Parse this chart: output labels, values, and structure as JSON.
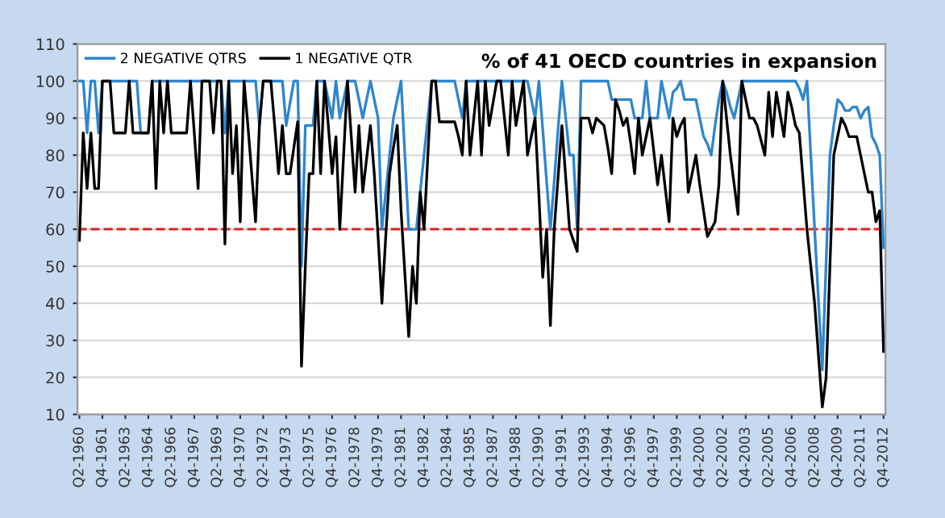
{
  "chart_data": {
    "type": "line",
    "title": "% of 41 OECD countries in expansion",
    "categories": [
      "Q2-1960",
      null,
      null,
      null,
      null,
      null,
      "Q4-1961",
      null,
      null,
      null,
      null,
      null,
      "Q2-1963",
      null,
      null,
      null,
      null,
      null,
      "Q4-1964",
      null,
      null,
      null,
      null,
      null,
      "Q2-1966",
      null,
      null,
      null,
      null,
      null,
      "Q4-1967",
      null,
      null,
      null,
      null,
      null,
      "Q2-1969",
      null,
      null,
      null,
      null,
      null,
      "Q4-1970",
      null,
      null,
      null,
      null,
      null,
      "Q2-1972",
      null,
      null,
      null,
      null,
      null,
      "Q4-1973",
      null,
      null,
      null,
      null,
      null,
      "Q2-1975",
      null,
      null,
      null,
      null,
      null,
      "Q4-1976",
      null,
      null,
      null,
      null,
      null,
      "Q2-1978",
      null,
      null,
      null,
      null,
      null,
      "Q4-1979",
      null,
      null,
      null,
      null,
      null,
      "Q2-1981",
      null,
      null,
      null,
      null,
      null,
      "Q4-1982",
      null,
      null,
      null,
      null,
      null,
      "Q2-1984",
      null,
      null,
      null,
      null,
      null,
      "Q4-1985",
      null,
      null,
      null,
      null,
      null,
      "Q2-1987",
      null,
      null,
      null,
      null,
      null,
      "Q4-1988",
      null,
      null,
      null,
      null,
      null,
      "Q2-1990",
      null,
      null,
      null,
      null,
      null,
      "Q4-1991",
      null,
      null,
      null,
      null,
      null,
      "Q2-1993",
      null,
      null,
      null,
      null,
      null,
      "Q4-1994",
      null,
      null,
      null,
      null,
      null,
      "Q2-1996",
      null,
      null,
      null,
      null,
      null,
      "Q4-1997",
      null,
      null,
      null,
      null,
      null,
      "Q2-1999",
      null,
      null,
      null,
      null,
      null,
      "Q4-2000",
      null,
      null,
      null,
      null,
      null,
      "Q2-2002",
      null,
      null,
      null,
      null,
      null,
      "Q4-2003",
      null,
      null,
      null,
      null,
      null,
      "Q2-2005",
      null,
      null,
      null,
      null,
      null,
      "Q4-2006",
      null,
      null,
      null,
      null,
      null,
      "Q2-2008",
      null,
      null,
      null,
      null,
      null,
      "Q4-2009",
      null,
      null,
      null,
      null,
      null,
      "Q2-2011",
      null,
      null,
      null,
      null,
      null,
      "Q4-2012"
    ],
    "series": [
      {
        "name": "2 NEGATIVE QTRS",
        "color": "#2f86cf",
        "values": [
          100,
          100,
          86,
          100,
          100,
          86,
          100,
          100,
          100,
          100,
          100,
          100,
          100,
          100,
          100,
          100,
          86,
          86,
          86,
          100,
          100,
          100,
          100,
          100,
          100,
          100,
          100,
          100,
          100,
          100,
          100,
          100,
          100,
          100,
          100,
          100,
          100,
          100,
          86,
          100,
          100,
          100,
          100,
          100,
          100,
          100,
          100,
          88,
          100,
          100,
          100,
          100,
          100,
          100,
          88,
          94,
          100,
          100,
          50,
          88,
          88,
          88,
          100,
          100,
          100,
          95,
          90,
          100,
          90,
          95,
          100,
          100,
          100,
          95,
          90,
          95,
          100,
          95,
          90,
          60,
          70,
          80,
          90,
          95,
          100,
          80,
          60,
          60,
          60,
          70,
          80,
          90,
          100,
          100,
          100,
          100,
          100,
          100,
          100,
          95,
          90,
          100,
          100,
          100,
          100,
          100,
          100,
          100,
          100,
          100,
          100,
          100,
          100,
          100,
          100,
          100,
          100,
          100,
          95,
          90,
          100,
          87,
          73,
          60,
          73,
          87,
          100,
          90,
          80,
          80,
          60,
          100,
          100,
          100,
          100,
          100,
          100,
          100,
          100,
          95,
          95,
          95,
          95,
          95,
          95,
          90,
          90,
          90,
          100,
          90,
          90,
          90,
          100,
          95,
          90,
          97,
          98,
          100,
          95,
          95,
          95,
          95,
          90,
          85,
          83,
          80,
          88,
          95,
          100,
          97,
          93,
          90,
          95,
          100,
          100,
          100,
          100,
          100,
          100,
          100,
          100,
          100,
          100,
          100,
          100,
          100,
          100,
          100,
          98,
          95,
          100,
          80,
          60,
          41,
          22,
          51,
          80,
          88,
          95,
          94,
          92,
          92,
          93,
          93,
          90,
          92,
          93,
          85,
          83,
          80,
          55
        ]
      },
      {
        "name": "1 NEGATIVE QTR",
        "color": "#000000",
        "values": [
          57,
          86,
          71,
          86,
          71,
          71,
          100,
          100,
          100,
          86,
          86,
          86,
          86,
          100,
          86,
          86,
          86,
          86,
          86,
          100,
          71,
          100,
          86,
          100,
          86,
          86,
          86,
          86,
          86,
          100,
          86,
          71,
          100,
          100,
          100,
          86,
          100,
          100,
          56,
          100,
          75,
          88,
          62,
          100,
          88,
          75,
          62,
          88,
          100,
          100,
          100,
          88,
          75,
          88,
          75,
          75,
          82,
          89,
          23,
          50,
          75,
          75,
          100,
          75,
          100,
          88,
          75,
          85,
          60,
          80,
          100,
          85,
          70,
          88,
          70,
          79,
          88,
          75,
          58,
          40,
          58,
          75,
          82,
          88,
          65,
          48,
          31,
          50,
          40,
          70,
          60,
          80,
          100,
          100,
          89,
          89,
          89,
          89,
          89,
          85,
          80,
          100,
          80,
          90,
          100,
          80,
          100,
          88,
          94,
          100,
          100,
          90,
          80,
          100,
          88,
          94,
          100,
          80,
          85,
          90,
          69,
          47,
          60,
          34,
          60,
          74,
          88,
          74,
          60,
          57,
          54,
          90,
          90,
          90,
          86,
          90,
          89,
          88,
          82,
          75,
          95,
          92,
          88,
          90,
          83,
          75,
          90,
          80,
          85,
          90,
          81,
          72,
          80,
          71,
          62,
          90,
          85,
          88,
          90,
          70,
          75,
          80,
          72,
          65,
          58,
          60,
          62,
          72,
          100,
          90,
          80,
          72,
          64,
          100,
          95,
          90,
          90,
          88,
          84,
          80,
          97,
          85,
          97,
          91,
          85,
          97,
          93,
          88,
          86,
          73,
          60,
          50,
          40,
          26,
          12,
          20,
          50,
          80,
          85,
          90,
          88,
          85,
          85,
          85,
          80,
          75,
          70,
          70,
          62,
          65,
          27
        ]
      }
    ],
    "ylim": [
      10,
      110
    ],
    "yticks": [
      10,
      20,
      30,
      40,
      50,
      60,
      70,
      80,
      90,
      100,
      110
    ],
    "grid": "y",
    "legend": "top left",
    "marker": "none",
    "line_style": "solid",
    "ref_lines": [
      {
        "axis": "y",
        "value": 60,
        "color": "#e02020",
        "line_style": "dashed"
      }
    ]
  }
}
